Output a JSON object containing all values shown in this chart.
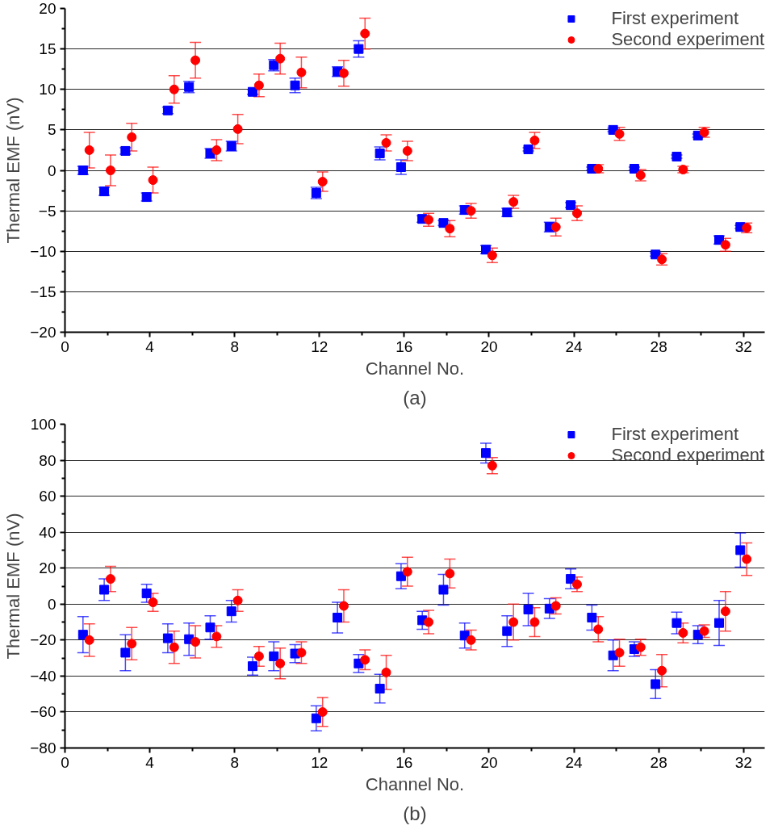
{
  "chart_data": [
    {
      "type": "scatter",
      "xlabel": "Channel No.",
      "ylabel": "Thermal EMF (nV)",
      "annotations": [
        "(a)"
      ],
      "xlim": [
        0,
        33
      ],
      "ylim": [
        -20,
        20
      ],
      "xticks": [
        0,
        4,
        8,
        12,
        16,
        20,
        24,
        28,
        32
      ],
      "yticks": [
        -20,
        -15,
        -10,
        -5,
        0,
        5,
        10,
        15,
        20
      ],
      "grid": "y",
      "legend": "top right",
      "series": [
        {
          "name": "First experiment",
          "color": "#0000ff",
          "marker": "square",
          "x": [
            0.85,
            1.85,
            2.85,
            3.85,
            4.85,
            5.85,
            6.85,
            7.85,
            8.85,
            9.85,
            10.85,
            11.85,
            12.85,
            13.85,
            14.85,
            15.85,
            16.85,
            17.85,
            18.85,
            19.85,
            20.85,
            21.85,
            22.85,
            23.85,
            24.85,
            25.85,
            26.85,
            27.85,
            28.85,
            29.85,
            30.85,
            31.85
          ],
          "values": [
            0,
            -2.6,
            2.4,
            -3.3,
            7.4,
            10.3,
            2.1,
            3.0,
            9.7,
            13.0,
            10.5,
            -2.8,
            12.2,
            15.0,
            2.1,
            0.4,
            -6.0,
            -6.5,
            -4.9,
            -9.8,
            -5.2,
            2.6,
            -7.0,
            -4.3,
            0.2,
            5.0,
            0.2,
            -10.4,
            1.7,
            4.3,
            -8.6,
            -7.0
          ],
          "errors": [
            0.5,
            0.5,
            0.4,
            0.5,
            0.4,
            0.7,
            0.6,
            0.6,
            0.3,
            0.7,
            0.9,
            0.7,
            0.6,
            1.0,
            0.8,
            0.9,
            0.4,
            0.3,
            0.5,
            0.5,
            0.5,
            0.2,
            0.6,
            0.3,
            0.2,
            0.2,
            0.2,
            0.2,
            0.2,
            0.2,
            0.5,
            0.2
          ]
        },
        {
          "name": "Second experiment",
          "color": "#ff0000",
          "marker": "circle",
          "x": [
            1.15,
            2.15,
            3.15,
            4.15,
            5.15,
            6.15,
            7.15,
            8.15,
            9.15,
            10.15,
            11.15,
            12.15,
            13.15,
            14.15,
            15.15,
            16.15,
            17.15,
            18.15,
            19.15,
            20.15,
            21.15,
            22.15,
            23.15,
            24.15,
            25.15,
            26.15,
            27.15,
            28.15,
            29.15,
            30.15,
            31.15,
            32.15
          ],
          "values": [
            2.5,
            0,
            4.1,
            -1.2,
            10.0,
            13.6,
            2.5,
            5.1,
            10.5,
            13.8,
            12.1,
            -1.4,
            12.0,
            16.9,
            3.4,
            2.4,
            -6.1,
            -7.2,
            -5.0,
            -10.5,
            -3.9,
            3.7,
            -7.0,
            -5.3,
            0.2,
            4.5,
            -0.6,
            -11.0,
            0.1,
            4.7,
            -9.2,
            -7.1
          ],
          "errors": [
            2.2,
            1.9,
            1.7,
            1.6,
            1.7,
            2.2,
            1.3,
            1.8,
            1.4,
            1.9,
            1.9,
            1.2,
            1.6,
            1.9,
            1.0,
            1.2,
            0.8,
            1.0,
            0.9,
            0.9,
            0.8,
            1.0,
            1.1,
            0.9,
            0.5,
            0.8,
            0.7,
            0.7,
            0.4,
            0.6,
            0.8,
            0.6
          ]
        }
      ]
    },
    {
      "type": "scatter",
      "xlabel": "Channel No.",
      "ylabel": "Thermal EMF (nV)",
      "annotations": [
        "(b)"
      ],
      "xlim": [
        0,
        33
      ],
      "ylim": [
        -80,
        100
      ],
      "xticks": [
        0,
        4,
        8,
        12,
        16,
        20,
        24,
        28,
        32
      ],
      "yticks": [
        -80,
        -60,
        -40,
        -20,
        0,
        20,
        40,
        60,
        80,
        100
      ],
      "grid": "y",
      "legend": "top right",
      "series": [
        {
          "name": "First experiment",
          "color": "#0000ff",
          "marker": "square",
          "x": [
            0.85,
            1.85,
            2.85,
            3.85,
            4.85,
            5.85,
            6.85,
            7.85,
            8.85,
            9.85,
            10.85,
            11.85,
            12.85,
            13.85,
            14.85,
            15.85,
            16.85,
            17.85,
            18.85,
            19.85,
            20.85,
            21.85,
            22.85,
            23.85,
            24.85,
            25.85,
            26.85,
            27.85,
            28.85,
            29.85,
            30.85,
            31.85
          ],
          "values": [
            -17,
            8,
            -27,
            6,
            -19,
            -19.5,
            -13,
            -4,
            -34.5,
            -29,
            -27.5,
            -63.5,
            -7.5,
            -33,
            -47,
            15.5,
            -9,
            8,
            -17.5,
            84,
            -15,
            -3,
            -2.5,
            14,
            -7.5,
            -28.5,
            -25,
            -44.5,
            -10.5,
            -17,
            -10.5,
            30
          ],
          "errors": [
            10,
            6,
            10,
            5,
            8,
            9,
            6.5,
            6,
            5,
            8,
            5,
            7,
            8.5,
            5,
            8,
            7,
            5,
            8.5,
            7,
            5.5,
            8.5,
            9,
            5.5,
            5.5,
            7,
            8.5,
            4,
            8,
            6,
            5,
            12.5,
            9.5
          ]
        },
        {
          "name": "Second experiment",
          "color": "#ff0000",
          "marker": "circle",
          "x": [
            1.15,
            2.15,
            3.15,
            4.15,
            5.15,
            6.15,
            7.15,
            8.15,
            9.15,
            10.15,
            11.15,
            12.15,
            13.15,
            14.15,
            15.15,
            16.15,
            17.15,
            18.15,
            19.15,
            20.15,
            21.15,
            22.15,
            23.15,
            24.15,
            25.15,
            26.15,
            27.15,
            28.15,
            29.15,
            30.15,
            31.15,
            32.15
          ],
          "values": [
            -20,
            14,
            -22,
            1,
            -24,
            -21,
            -18,
            2,
            -29,
            -33,
            -27,
            -60,
            -1,
            -31,
            -38,
            18,
            -10,
            17,
            -20,
            77,
            -10,
            -10,
            -1,
            11,
            -14,
            -27,
            -24,
            -37,
            -16,
            -15,
            -4,
            25
          ],
          "errors": [
            9,
            7,
            9,
            5,
            9,
            9,
            6,
            6,
            5.5,
            8.5,
            6,
            8,
            9,
            5.5,
            9.5,
            8,
            6.5,
            8,
            5.5,
            4.5,
            10,
            8,
            4.5,
            4,
            7,
            7.5,
            4.5,
            9,
            5.5,
            3.5,
            11,
            9
          ]
        }
      ]
    }
  ]
}
